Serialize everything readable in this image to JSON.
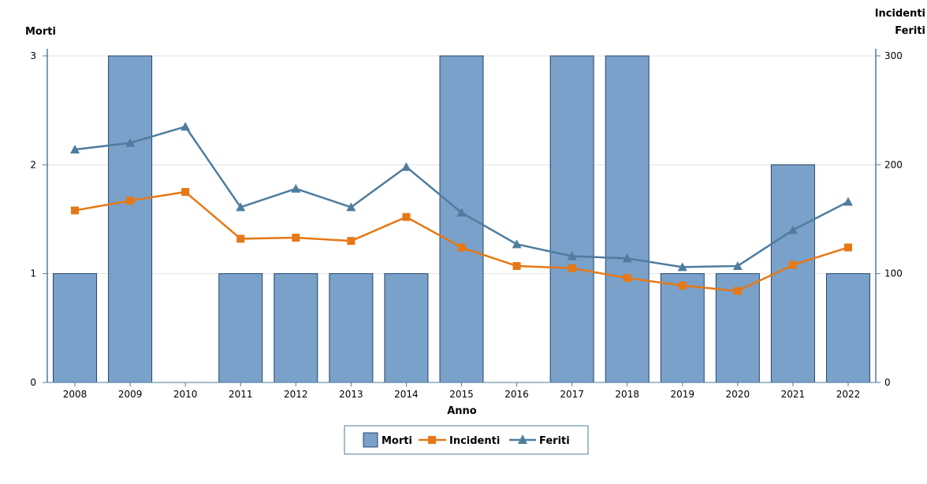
{
  "chart_data": {
    "type": "bar",
    "categories": [
      "2008",
      "2009",
      "2010",
      "2011",
      "2012",
      "2013",
      "2014",
      "2015",
      "2016",
      "2017",
      "2018",
      "2019",
      "2020",
      "2021",
      "2022"
    ],
    "xlabel": "Anno",
    "y_left": {
      "label": "Morti",
      "ylim": [
        0,
        3
      ],
      "ticks": [
        "0",
        "1",
        "2",
        "3"
      ]
    },
    "y_right": {
      "label_line1": "Incidenti",
      "label_line2": "Feriti",
      "ylim": [
        0,
        300
      ],
      "ticks": [
        "0",
        "100",
        "200",
        "300"
      ]
    },
    "series": [
      {
        "name": "Morti",
        "kind": "bar",
        "axis": "left",
        "color": "#7aa1c9",
        "values": [
          1,
          3,
          0,
          1,
          1,
          1,
          1,
          3,
          0,
          3,
          3,
          1,
          1,
          2,
          1
        ]
      },
      {
        "name": "Incidenti",
        "kind": "line",
        "marker": "square",
        "axis": "right",
        "color": "#e67816",
        "values": [
          158,
          167,
          175,
          132,
          133,
          130,
          152,
          124,
          107,
          105,
          96,
          89,
          84,
          108,
          124
        ]
      },
      {
        "name": "Feriti",
        "kind": "line",
        "marker": "triangle",
        "axis": "right",
        "color": "#4e7d9e",
        "values": [
          214,
          220,
          235,
          161,
          178,
          161,
          198,
          156,
          127,
          116,
          114,
          106,
          107,
          140,
          166
        ]
      }
    ],
    "grid": true,
    "legend_position": "bottom-center"
  }
}
